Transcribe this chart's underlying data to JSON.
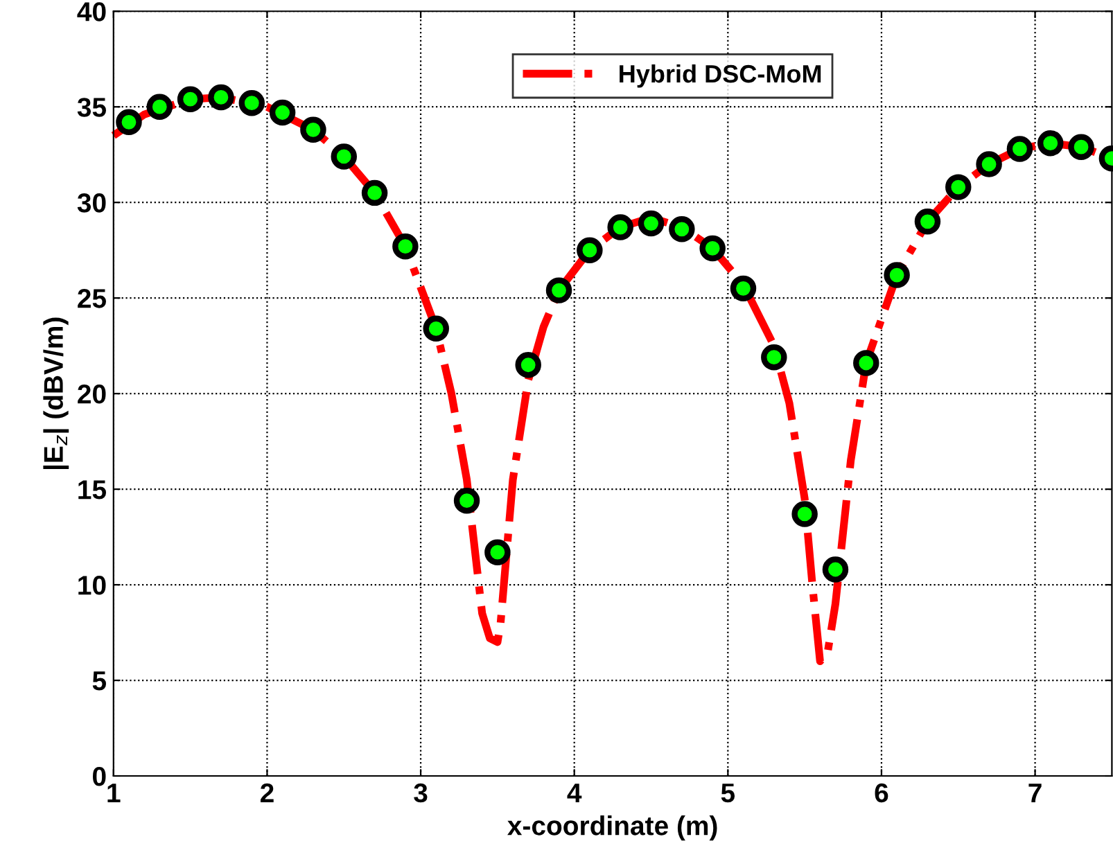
{
  "chart_data": {
    "type": "line",
    "xlabel": "x-coordinate (m)",
    "ylabel": "|E$_{z}$| (dBV/m)",
    "xlim": [
      1,
      7.5
    ],
    "xticks": [
      1,
      2,
      3,
      4,
      5,
      6,
      7
    ],
    "ylim": [
      0,
      40
    ],
    "yticks": [
      0,
      5,
      10,
      15,
      20,
      25,
      30,
      35,
      40
    ],
    "grid": true,
    "legend": "top",
    "series": [
      {
        "name": "Hybrid DSC-MoM",
        "color": "#ff0000",
        "line_style": "dashed",
        "marker": "none",
        "x": [
          1.0,
          1.2,
          1.5,
          1.7,
          2.0,
          2.3,
          2.5,
          2.7,
          2.9,
          3.1,
          3.2,
          3.3,
          3.4,
          3.45,
          3.5,
          3.52,
          3.6,
          3.7,
          3.8,
          3.9,
          4.1,
          4.3,
          4.5,
          4.7,
          4.9,
          5.1,
          5.3,
          5.4,
          5.5,
          5.55,
          5.6,
          5.65,
          5.7,
          5.8,
          5.9,
          6.1,
          6.3,
          6.5,
          6.7,
          6.9,
          7.1,
          7.3,
          7.5
        ],
        "values": [
          33.5,
          34.6,
          35.4,
          35.5,
          35.0,
          33.8,
          32.4,
          30.5,
          27.7,
          23.4,
          20,
          15.5,
          8.5,
          7.2,
          7.0,
          8,
          15.5,
          20.7,
          23.5,
          25.4,
          27.5,
          28.7,
          29.2,
          28.7,
          27.6,
          25.7,
          22.5,
          19.5,
          14.5,
          10,
          6.0,
          6.5,
          9,
          16.5,
          21.6,
          26.2,
          29,
          30.8,
          32,
          32.8,
          33.1,
          32.9,
          32.3
        ]
      },
      {
        "type": "scatter",
        "color": "#00ff00",
        "marker": "circle",
        "x": [
          1.1,
          1.3,
          1.5,
          1.7,
          1.9,
          2.1,
          2.3,
          2.5,
          2.7,
          2.9,
          3.1,
          3.3,
          3.5,
          3.7,
          3.9,
          4.1,
          4.3,
          4.5,
          4.7,
          4.9,
          5.1,
          5.3,
          5.5,
          5.7,
          5.9,
          6.1,
          6.3,
          6.5,
          6.7,
          6.9,
          7.1,
          7.3,
          7.5
        ],
        "values": [
          34.2,
          35,
          35.4,
          35.5,
          35.2,
          34.7,
          33.8,
          32.4,
          30.5,
          27.7,
          23.4,
          14.4,
          11.7,
          21.5,
          25.4,
          27.5,
          28.7,
          28.9,
          28.6,
          27.6,
          25.5,
          21.9,
          13.7,
          10.8,
          21.6,
          26.2,
          29.0,
          30.8,
          32.0,
          32.8,
          33.1,
          32.9,
          32.3
        ]
      }
    ]
  }
}
